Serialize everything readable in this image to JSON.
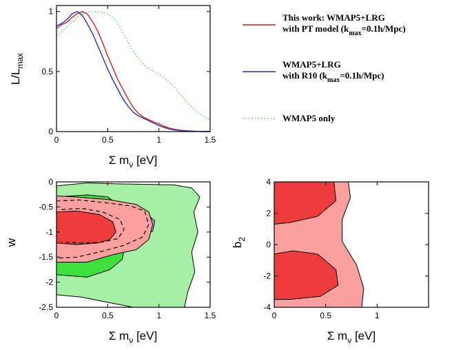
{
  "chart_data": [
    {
      "type": "line",
      "panel": "likelihood",
      "xlabel": "Σ m_ν [eV]",
      "ylabel": "L/L_max",
      "xlim": [
        0,
        1.5
      ],
      "ylim": [
        0,
        1.05
      ],
      "xticks": [
        "0",
        "0.5",
        "1",
        "1.5"
      ],
      "yticks": [
        "0",
        "0.5",
        "1"
      ],
      "legend_position": "right",
      "series": [
        {
          "name": "This work: WMAP5+LRG with PT model (k_max=0.1h/Mpc)",
          "color": "#e41a1c",
          "style": "solid",
          "x": [
            0,
            0.05,
            0.1,
            0.15,
            0.2,
            0.25,
            0.3,
            0.35,
            0.4,
            0.45,
            0.5,
            0.55,
            0.6,
            0.65,
            0.7,
            0.75,
            0.8,
            0.85,
            0.9,
            0.95,
            1.0,
            1.05,
            1.1,
            1.15,
            1.2,
            1.25,
            1.3,
            1.35,
            1.4,
            1.45,
            1.5
          ],
          "y": [
            0.86,
            0.89,
            0.91,
            0.95,
            0.98,
            1.0,
            0.98,
            0.92,
            0.84,
            0.74,
            0.63,
            0.53,
            0.43,
            0.35,
            0.27,
            0.2,
            0.15,
            0.12,
            0.1,
            0.08,
            0.065,
            0.045,
            0.03,
            0.02,
            0.012,
            0.008,
            0.005,
            0.003,
            0.002,
            0.001,
            0.0
          ]
        },
        {
          "name": "WMAP5+LRG with R10 (k_max=0.1h/Mpc)",
          "color": "#1a2fd4",
          "style": "solid",
          "x": [
            0,
            0.05,
            0.1,
            0.15,
            0.2,
            0.25,
            0.3,
            0.35,
            0.4,
            0.45,
            0.5,
            0.55,
            0.6,
            0.65,
            0.7,
            0.75,
            0.8,
            0.85,
            0.9,
            0.95,
            1.0,
            1.05,
            1.1,
            1.15,
            1.2,
            1.25,
            1.3,
            1.35,
            1.4,
            1.45,
            1.5
          ],
          "y": [
            0.88,
            0.9,
            0.93,
            0.98,
            1.0,
            0.97,
            0.9,
            0.82,
            0.72,
            0.62,
            0.52,
            0.43,
            0.35,
            0.27,
            0.21,
            0.16,
            0.13,
            0.11,
            0.09,
            0.07,
            0.05,
            0.035,
            0.022,
            0.014,
            0.009,
            0.006,
            0.004,
            0.002,
            0.001,
            0.0,
            0.0
          ]
        },
        {
          "name": "WMAP5 only",
          "color": "#44cc44",
          "style": "dotted",
          "x": [
            0,
            0.05,
            0.1,
            0.15,
            0.2,
            0.25,
            0.3,
            0.35,
            0.4,
            0.45,
            0.5,
            0.55,
            0.6,
            0.65,
            0.7,
            0.75,
            0.8,
            0.85,
            0.9,
            0.95,
            1.0,
            1.05,
            1.1,
            1.15,
            1.2,
            1.25,
            1.3,
            1.35,
            1.4,
            1.45,
            1.5
          ],
          "y": [
            0.8,
            0.83,
            0.87,
            0.91,
            0.95,
            0.98,
            0.995,
            1.0,
            1.0,
            0.995,
            0.98,
            0.95,
            0.9,
            0.82,
            0.74,
            0.67,
            0.61,
            0.56,
            0.52,
            0.5,
            0.48,
            0.45,
            0.41,
            0.37,
            0.32,
            0.27,
            0.22,
            0.18,
            0.15,
            0.12,
            0.1
          ]
        }
      ]
    },
    {
      "type": "contour",
      "panel": "w-vs-mnu",
      "xlabel": "Σ m_ν [eV]",
      "ylabel": "w",
      "xlim": [
        0,
        1.5
      ],
      "ylim": [
        -2.5,
        0
      ],
      "xticks": [
        "0",
        "0.5",
        "1",
        "1.5"
      ],
      "yticks": [
        "0",
        "-0.5",
        "-1",
        "-1.5",
        "-2",
        "-2.5"
      ],
      "regions": [
        {
          "name": "WMAP5 only 2σ",
          "color": "#a6f0a6",
          "points": [
            [
              0,
              -0.08
            ],
            [
              0.3,
              -0.02
            ],
            [
              0.6,
              -0.04
            ],
            [
              0.9,
              -0.05
            ],
            [
              1.15,
              -0.06
            ],
            [
              1.32,
              -0.12
            ],
            [
              1.4,
              -0.3
            ],
            [
              1.34,
              -0.6
            ],
            [
              1.38,
              -1.0
            ],
            [
              1.32,
              -1.4
            ],
            [
              1.35,
              -1.8
            ],
            [
              1.28,
              -2.2
            ],
            [
              1.25,
              -2.5
            ],
            [
              0.75,
              -2.5
            ],
            [
              0.55,
              -2.42
            ],
            [
              0.25,
              -2.3
            ],
            [
              0,
              -2.25
            ]
          ]
        },
        {
          "name": "WMAP5 only 1σ",
          "color": "#3ee03e",
          "points": [
            [
              0,
              -0.3
            ],
            [
              0.3,
              -0.26
            ],
            [
              0.5,
              -0.3
            ],
            [
              0.6,
              -0.45
            ],
            [
              0.65,
              -0.8
            ],
            [
              0.68,
              -1.2
            ],
            [
              0.64,
              -1.55
            ],
            [
              0.52,
              -1.75
            ],
            [
              0.3,
              -1.9
            ],
            [
              0,
              -1.85
            ]
          ]
        },
        {
          "name": "WMAP5+LRG R10 2σ",
          "color": "#a3a3f2",
          "points": [
            [
              0,
              -0.42
            ],
            [
              0.2,
              -0.38
            ],
            [
              0.45,
              -0.4
            ],
            [
              0.68,
              -0.45
            ],
            [
              0.85,
              -0.58
            ],
            [
              0.96,
              -0.78
            ],
            [
              0.94,
              -0.98
            ],
            [
              0.78,
              -1.15
            ],
            [
              0.55,
              -1.25
            ],
            [
              0.25,
              -1.28
            ],
            [
              0,
              -1.25
            ]
          ]
        },
        {
          "name": "This work 2σ",
          "color": "#fb9f9f",
          "points": [
            [
              0,
              -0.28
            ],
            [
              0.18,
              -0.3
            ],
            [
              0.5,
              -0.35
            ],
            [
              0.78,
              -0.45
            ],
            [
              0.9,
              -0.6
            ],
            [
              0.94,
              -0.85
            ],
            [
              0.9,
              -1.15
            ],
            [
              0.78,
              -1.35
            ],
            [
              0.55,
              -1.45
            ],
            [
              0.3,
              -1.6
            ],
            [
              0,
              -1.6
            ]
          ]
        },
        {
          "name": "This work 1σ",
          "color": "#ef3b3b",
          "points": [
            [
              0,
              -0.6
            ],
            [
              0.2,
              -0.58
            ],
            [
              0.42,
              -0.65
            ],
            [
              0.55,
              -0.8
            ],
            [
              0.58,
              -1.0
            ],
            [
              0.52,
              -1.15
            ],
            [
              0.4,
              -1.22
            ],
            [
              0.2,
              -1.25
            ],
            [
              0,
              -1.22
            ]
          ]
        }
      ],
      "dashed_contours": [
        [
          [
            0,
            -0.38
          ],
          [
            0.22,
            -0.36
          ],
          [
            0.5,
            -0.42
          ],
          [
            0.72,
            -0.48
          ],
          [
            0.86,
            -0.58
          ],
          [
            0.9,
            -0.85
          ],
          [
            0.84,
            -1.1
          ],
          [
            0.65,
            -1.27
          ],
          [
            0.45,
            -1.38
          ],
          [
            0.2,
            -1.5
          ],
          [
            0,
            -1.52
          ]
        ],
        [
          [
            0.05,
            -0.55
          ],
          [
            0.25,
            -0.53
          ],
          [
            0.45,
            -0.6
          ],
          [
            0.62,
            -0.75
          ],
          [
            0.66,
            -0.95
          ],
          [
            0.6,
            -1.13
          ],
          [
            0.45,
            -1.2
          ],
          [
            0.25,
            -1.22
          ],
          [
            0.05,
            -1.2
          ]
        ]
      ]
    },
    {
      "type": "contour",
      "panel": "b2-vs-mnu",
      "xlabel": "Σ m_ν [eV]",
      "ylabel": "b_2",
      "xlim": [
        0,
        1.5
      ],
      "ylim": [
        -4,
        4
      ],
      "xticks": [
        "0",
        "0.5",
        "1"
      ],
      "yticks": [
        "4",
        "2",
        "0",
        "-2",
        "-4"
      ],
      "regions": [
        {
          "name": "This work 2σ",
          "color": "#fb9f9f",
          "points": [
            [
              0,
              4
            ],
            [
              0.72,
              4
            ],
            [
              0.74,
              3.0
            ],
            [
              0.66,
              1.6
            ],
            [
              0.66,
              0.2
            ],
            [
              0.8,
              -1.3
            ],
            [
              0.87,
              -2.8
            ],
            [
              0.85,
              -4
            ],
            [
              0,
              -4
            ]
          ]
        },
        {
          "name": "This work 1σ upper",
          "color": "#ef3b3b",
          "points": [
            [
              0,
              4
            ],
            [
              0.58,
              4
            ],
            [
              0.6,
              2.8
            ],
            [
              0.42,
              1.8
            ],
            [
              0.15,
              1.4
            ],
            [
              0,
              1.3
            ]
          ]
        },
        {
          "name": "This work 1σ lower",
          "color": "#ef3b3b",
          "points": [
            [
              0,
              -0.6
            ],
            [
              0.18,
              -0.4
            ],
            [
              0.42,
              -0.6
            ],
            [
              0.6,
              -1.6
            ],
            [
              0.62,
              -2.6
            ],
            [
              0.45,
              -3.3
            ],
            [
              0.15,
              -3.5
            ],
            [
              0,
              -3.5
            ]
          ]
        }
      ]
    }
  ],
  "legend": [
    {
      "line1": "This work: WMAP5+LRG",
      "line2a": "with PT model (k",
      "sub": "max",
      "line2b": "=0.1h/Mpc)",
      "color": "#e41a1c",
      "style": "solid"
    },
    {
      "line1": "WMAP5+LRG",
      "line2a": "with R10 (k",
      "sub": "max",
      "line2b": "=0.1h/Mpc)",
      "color": "#1a2fd4",
      "style": "solid"
    },
    {
      "line1": "WMAP5 only",
      "line2a": "",
      "sub": "",
      "line2b": "",
      "color": "#44cc44",
      "style": "dotted"
    }
  ],
  "labels": {
    "ylabel_likelihood": "L/L",
    "ylabel_likelihood_sub": "max",
    "xlabel_sigma": "Σ m",
    "xlabel_nu": "ν",
    "xlabel_unit": " [eV]",
    "ylabel_w": "w",
    "ylabel_b": "b",
    "ylabel_b_sub": "2"
  }
}
